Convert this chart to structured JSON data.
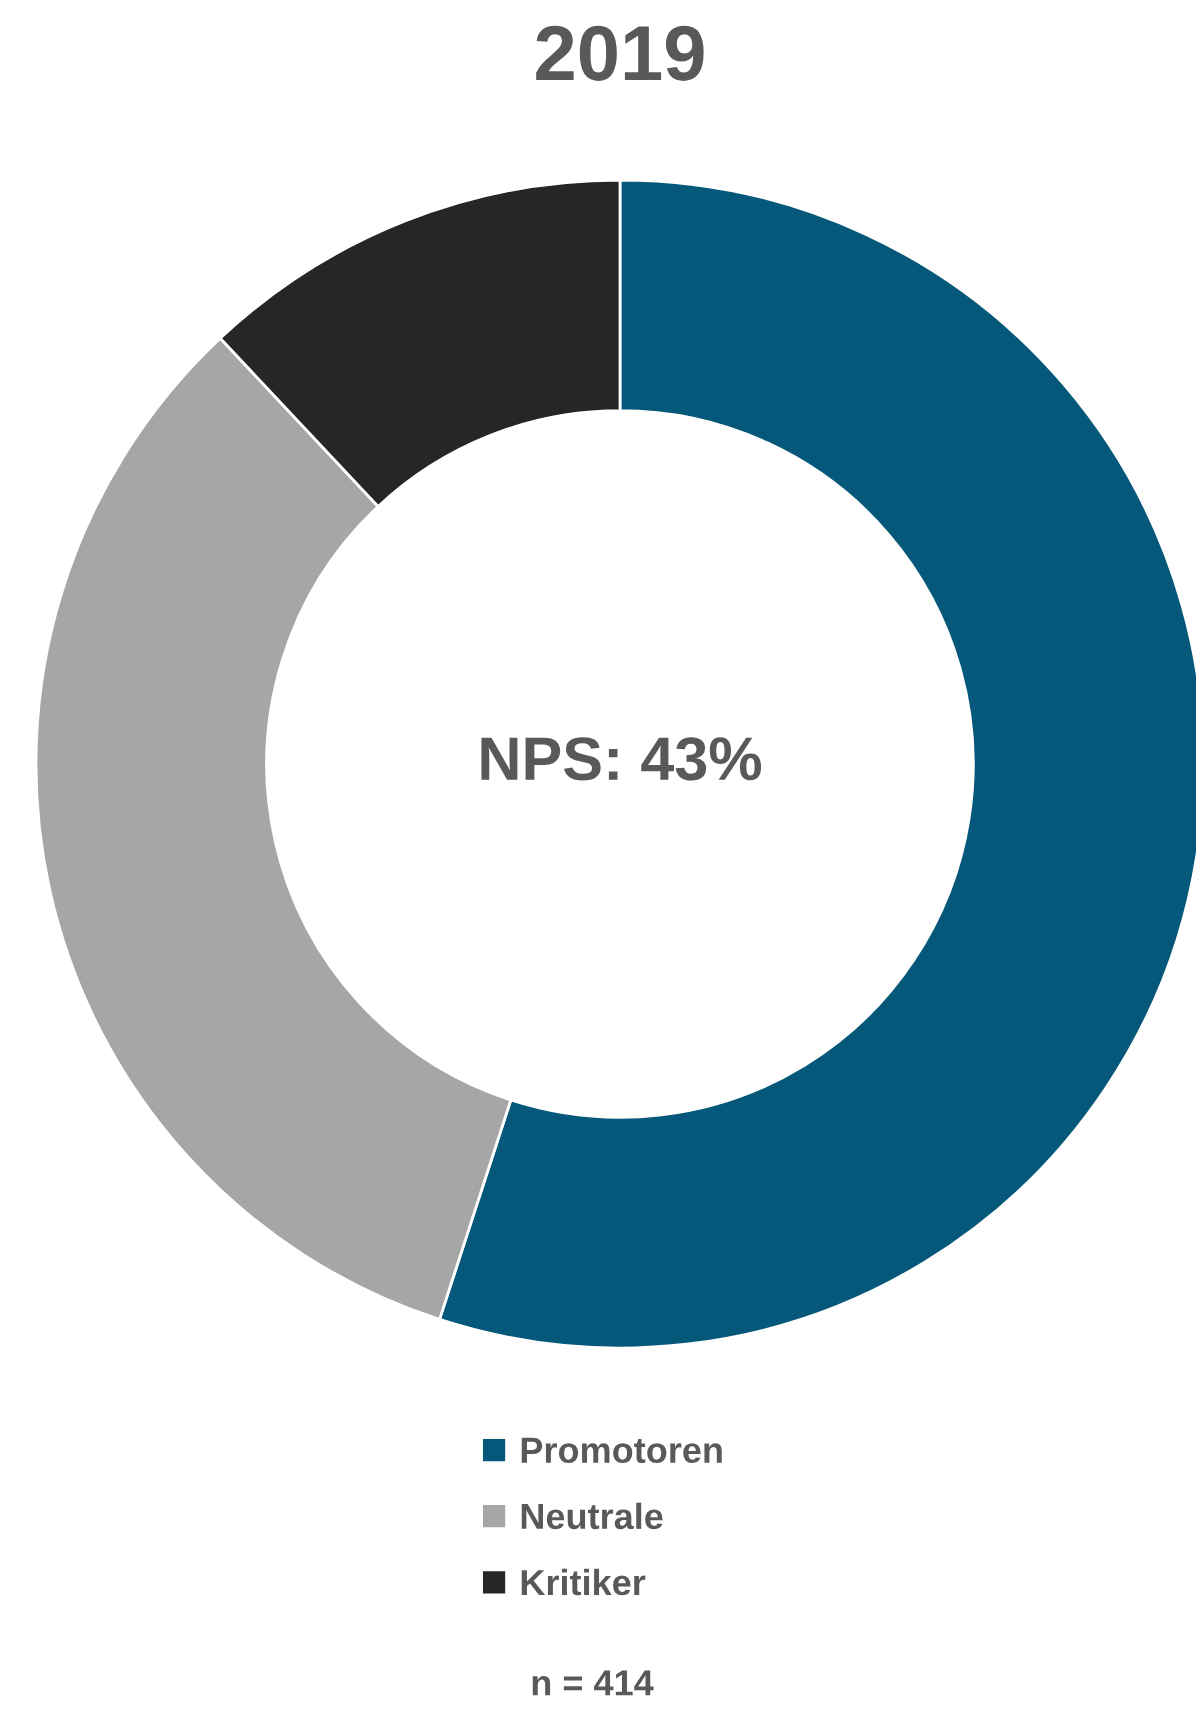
{
  "chart_data": {
    "type": "donut",
    "title": "2019",
    "categories": [
      "Promotoren",
      "Neutrale",
      "Kritiker"
    ],
    "values": [
      55,
      33,
      12
    ],
    "colors": [
      "#05587a",
      "#a6a6a6",
      "#262626"
    ],
    "legend": "bottom",
    "annotations": [
      "NPS: 43%",
      "n = 414"
    ]
  }
}
